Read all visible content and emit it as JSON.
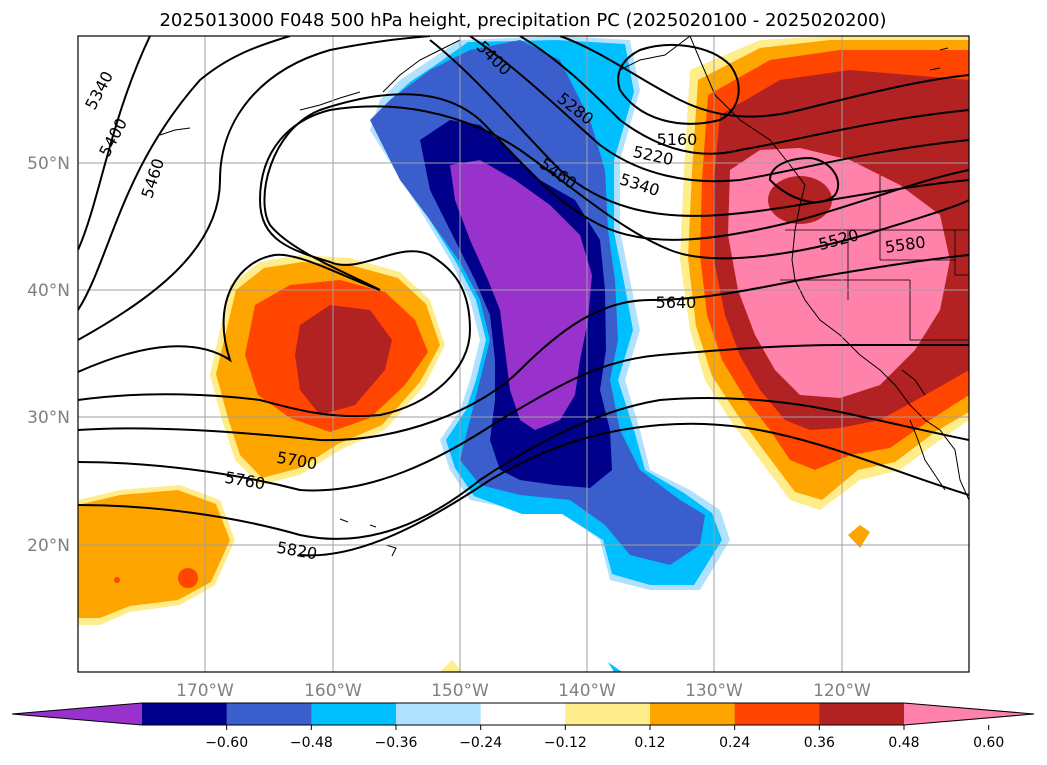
{
  "title": "2025013000 F048 500 hPa height, precipitation PC (2025020100 - 2025020200)",
  "latitude_labels": [
    "50°N",
    "40°N",
    "30°N",
    "20°N"
  ],
  "longitude_labels": [
    "170°W",
    "160°W",
    "150°W",
    "140°W",
    "130°W",
    "120°W"
  ],
  "contour_labels": [
    "5340",
    "5400",
    "5460",
    "5400",
    "5280",
    "5160",
    "5220",
    "5340",
    "5460",
    "5520",
    "5580",
    "5640",
    "5700",
    "5760",
    "5820"
  ],
  "colorbar": {
    "ticks": [
      "−0.60",
      "−0.48",
      "−0.36",
      "−0.24",
      "−0.12",
      "0.12",
      "0.24",
      "0.36",
      "0.48",
      "0.60"
    ],
    "colors": [
      "#9932cc",
      "#00008b",
      "#3a5fcd",
      "#00bfff",
      "#b0e2ff",
      "#ffffff",
      "#ffec8b",
      "#ffa500",
      "#ff4500",
      "#b22222",
      "#ff82ab"
    ]
  },
  "map": {
    "projection": "equirectangular",
    "extent": {
      "lon_min": -180,
      "lon_max": -110,
      "lat_min": 10,
      "lat_max": 60
    },
    "gridlines": true
  }
}
